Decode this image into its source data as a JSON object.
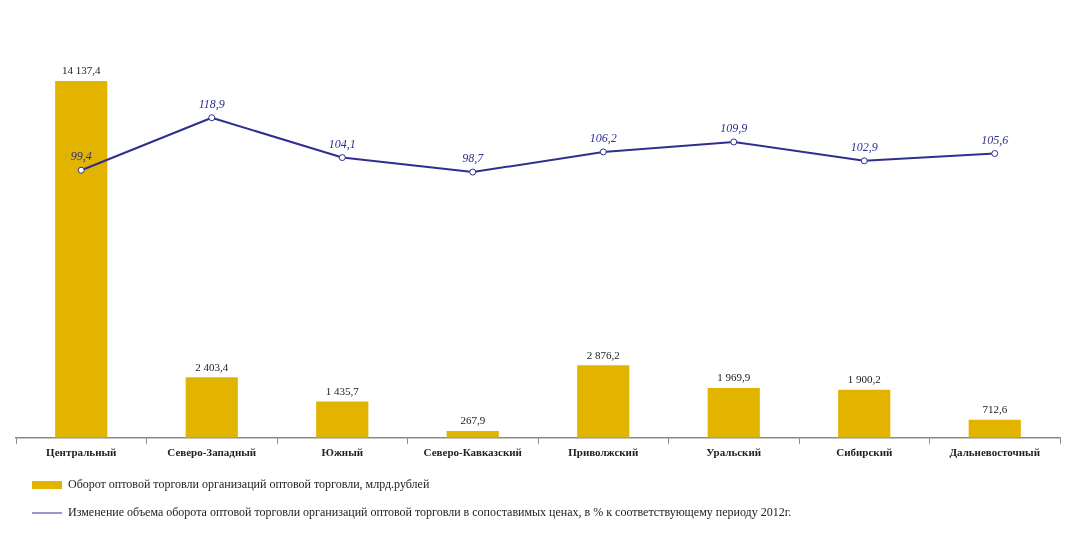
{
  "chart_data": {
    "type": "bar",
    "categories": [
      "Центральный",
      "Северо-Западный",
      "Южный",
      "Северо-Кавказский",
      "Приволжский",
      "Уральский",
      "Сибирский",
      "Дальневосточный"
    ],
    "series": [
      {
        "name": "Оборот оптовой торговли организаций оптовой торговли, млрд.рублей",
        "color": "#e2b400",
        "values": [
          14137.4,
          2403.4,
          1435.7,
          267.9,
          2876.2,
          1969.9,
          1900.2,
          712.6
        ],
        "value_labels": [
          "14 137,4",
          "2 403,4",
          "1 435,7",
          "267,9",
          "2 876,2",
          "1 969,9",
          "1 900,2",
          "712,6"
        ]
      },
      {
        "name": "Изменение объема оборота оптовой торговли организаций оптовой торговли в сопоставимых ценах, в % к соответствующему периоду 2012г.",
        "type": "line",
        "axis": "y2",
        "color": "#2f2f8f",
        "marker": "circle",
        "line_style": "solid",
        "values": [
          99.4,
          118.9,
          104.1,
          98.7,
          106.2,
          109.9,
          102.9,
          105.6
        ],
        "value_labels": [
          "99,4",
          "118,9",
          "104,1",
          "98,7",
          "106,2",
          "109,9",
          "102,9",
          "105,6"
        ]
      }
    ],
    "legend": "bottom left",
    "grid": false
  }
}
